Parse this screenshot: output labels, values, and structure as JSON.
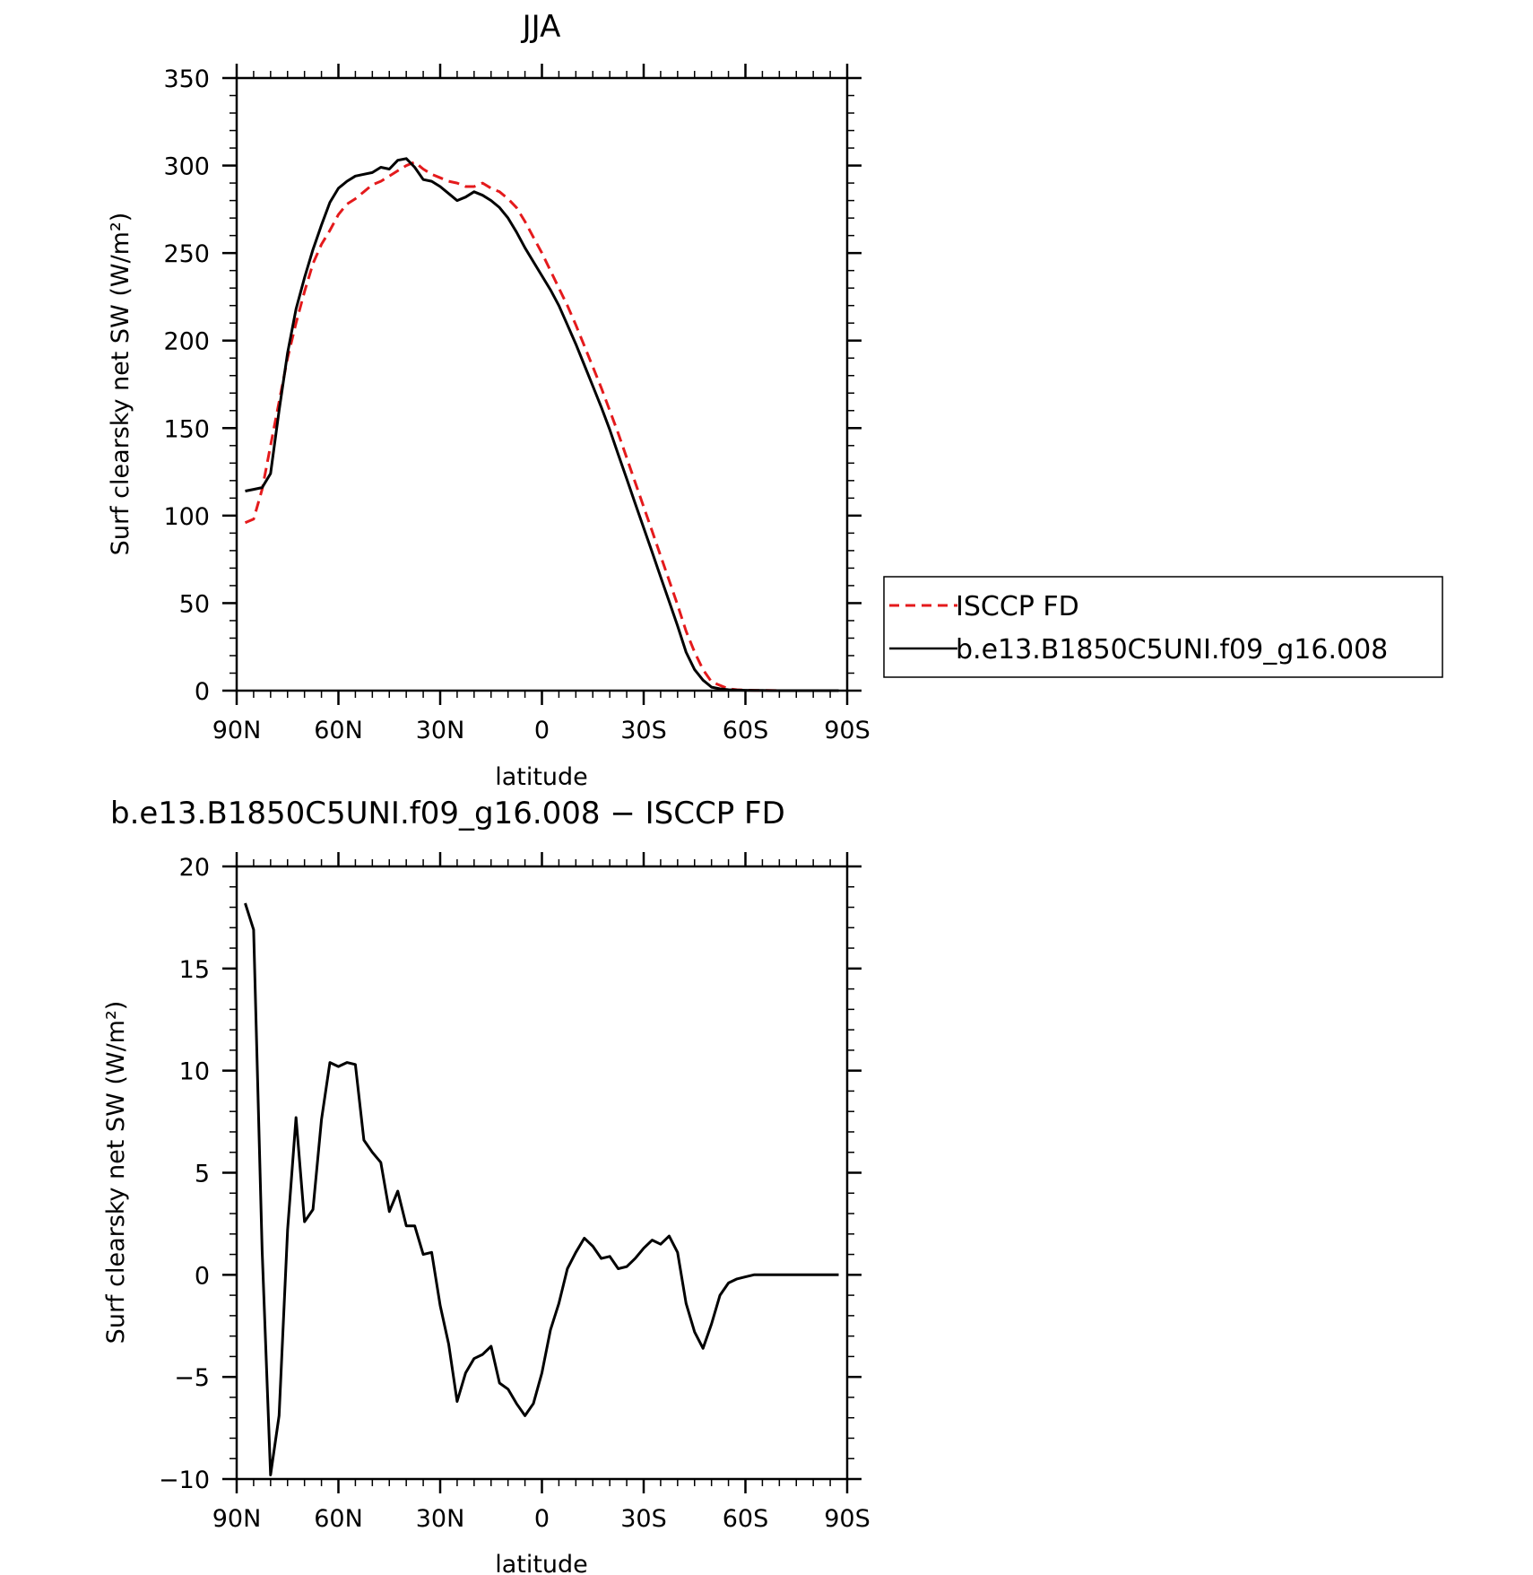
{
  "chart_data": [
    {
      "type": "line",
      "title": "JJA",
      "xlabel": "latitude",
      "ylabel": "Surf clearsky net SW (W/m²)",
      "xlim": [
        90,
        -90
      ],
      "ylim": [
        0,
        350
      ],
      "x_ticks": [
        90,
        60,
        30,
        0,
        -30,
        -60,
        -90
      ],
      "x_tick_labels": [
        "90N",
        "60N",
        "30N",
        "0",
        "30S",
        "60S",
        "90S"
      ],
      "y_ticks": [
        0,
        50,
        100,
        150,
        200,
        250,
        300,
        350
      ],
      "y_tick_labels": [
        "0",
        "50",
        "100",
        "150",
        "200",
        "250",
        "300",
        "350"
      ],
      "legend": {
        "position": "right",
        "entries": [
          "ISCCP FD",
          "b.e13.B1850C5UNI.f09_g16.008"
        ]
      },
      "series": [
        {
          "name": "ISCCP FD",
          "color": "#e41a1c",
          "dash": "dashed",
          "x": [
            87.5,
            85,
            82.5,
            80,
            77.5,
            75,
            72.5,
            70,
            67.5,
            65,
            62.5,
            60,
            57.5,
            55,
            52.5,
            50,
            47.5,
            45,
            42.5,
            40,
            37.5,
            35,
            32.5,
            30,
            27.5,
            25,
            22.5,
            20,
            17.5,
            15,
            12.5,
            10,
            7.5,
            5,
            2.5,
            0,
            -2.5,
            -5,
            -7.5,
            -10,
            -12.5,
            -15,
            -17.5,
            -20,
            -22.5,
            -25,
            -27.5,
            -30,
            -32.5,
            -35,
            -37.5,
            -40,
            -42.5,
            -45,
            -47.5,
            -50,
            -52.5,
            -55,
            -57.5,
            -60,
            -62.5,
            -65,
            -67.5,
            -70,
            -72.5,
            -75,
            -77.5,
            -80,
            -82.5,
            -85,
            -87.5
          ],
          "values": [
            96,
            98,
            115,
            140,
            165,
            190,
            210,
            228,
            244,
            255,
            263,
            272,
            278,
            281,
            285,
            289,
            291,
            294,
            297,
            300,
            302,
            298,
            295,
            293,
            291,
            290,
            288,
            288,
            290,
            287,
            285,
            281,
            276,
            268,
            259,
            250,
            240,
            230,
            220,
            209,
            197,
            185,
            173,
            160,
            147,
            133,
            119,
            105,
            91,
            77,
            63,
            49,
            34,
            22,
            12,
            5,
            3,
            1,
            0.5,
            0.3,
            0.2,
            0.1,
            0.1,
            0,
            0,
            0,
            0,
            0,
            0,
            0,
            0
          ]
        },
        {
          "name": "b.e13.B1850C5UNI.f09_g16.008",
          "color": "#000000",
          "dash": "solid",
          "x": [
            87.5,
            85,
            82.5,
            80,
            77.5,
            75,
            72.5,
            70,
            67.5,
            65,
            62.5,
            60,
            57.5,
            55,
            52.5,
            50,
            47.5,
            45,
            42.5,
            40,
            37.5,
            35,
            32.5,
            30,
            27.5,
            25,
            22.5,
            20,
            17.5,
            15,
            12.5,
            10,
            7.5,
            5,
            2.5,
            0,
            -2.5,
            -5,
            -7.5,
            -10,
            -12.5,
            -15,
            -17.5,
            -20,
            -22.5,
            -25,
            -27.5,
            -30,
            -32.5,
            -35,
            -37.5,
            -40,
            -42.5,
            -45,
            -47.5,
            -50,
            -52.5,
            -55,
            -57.5,
            -60,
            -62.5,
            -65,
            -67.5,
            -70,
            -72.5,
            -75,
            -77.5,
            -80,
            -82.5,
            -85,
            -87.5
          ],
          "values": [
            114,
            115,
            116,
            124,
            160,
            193,
            218,
            236,
            252,
            266,
            279,
            287,
            291,
            294,
            295,
            296,
            299,
            298,
            303,
            304,
            299,
            292,
            291,
            288,
            284,
            280,
            282,
            285,
            283,
            280,
            276,
            270,
            262,
            253,
            245,
            237,
            229,
            220,
            209,
            198,
            186,
            174,
            162,
            149,
            135,
            121,
            107,
            93,
            79,
            65,
            51,
            37,
            22,
            12,
            6,
            2,
            1,
            0.5,
            0.3,
            0.2,
            0.1,
            0.1,
            0,
            0,
            0,
            0,
            0,
            0,
            0,
            0,
            0
          ]
        }
      ]
    },
    {
      "type": "line",
      "title": "b.e13.B1850C5UNI.f09_g16.008 − ISCCP FD",
      "xlabel": "latitude",
      "ylabel": "Surf clearsky net SW (W/m²)",
      "xlim": [
        90,
        -90
      ],
      "ylim": [
        -10,
        20
      ],
      "x_ticks": [
        90,
        60,
        30,
        0,
        -30,
        -60,
        -90
      ],
      "x_tick_labels": [
        "90N",
        "60N",
        "30N",
        "0",
        "30S",
        "60S",
        "90S"
      ],
      "y_ticks": [
        -10,
        -5,
        0,
        5,
        10,
        15,
        20
      ],
      "y_tick_labels": [
        "−10",
        "−5",
        "0",
        "5",
        "10",
        "15",
        "20"
      ],
      "series": [
        {
          "color": "#000000",
          "dash": "solid",
          "x": [
            87.5,
            85,
            82.5,
            80,
            77.5,
            75,
            72.5,
            70,
            67.5,
            65,
            62.5,
            60,
            57.5,
            55,
            52.5,
            50,
            47.5,
            45,
            42.5,
            40,
            37.5,
            35,
            32.5,
            30,
            27.5,
            25,
            22.5,
            20,
            17.5,
            15,
            12.5,
            10,
            7.5,
            5,
            2.5,
            0,
            -2.5,
            -5,
            -7.5,
            -10,
            -12.5,
            -15,
            -17.5,
            -20,
            -22.5,
            -25,
            -27.5,
            -30,
            -32.5,
            -35,
            -37.5,
            -40,
            -42.5,
            -45,
            -47.5,
            -50,
            -52.5,
            -55,
            -57.5,
            -60,
            -62.5,
            -65,
            -67.5,
            -70,
            -72.5,
            -75,
            -77.5,
            -80,
            -82.5,
            -85,
            -87.5
          ],
          "values": [
            18.2,
            16.9,
            1.2,
            -9.8,
            -6.9,
            2.2,
            7.7,
            2.6,
            3.2,
            7.6,
            10.4,
            10.2,
            10.4,
            10.3,
            6.6,
            6.0,
            5.5,
            3.1,
            4.1,
            2.4,
            2.4,
            1.0,
            1.1,
            -1.5,
            -3.4,
            -6.2,
            -4.8,
            -4.1,
            -3.9,
            -3.5,
            -5.3,
            -5.6,
            -6.3,
            -6.9,
            -6.3,
            -4.8,
            -2.7,
            -1.4,
            0.3,
            1.1,
            1.8,
            1.4,
            0.8,
            0.9,
            0.3,
            0.4,
            0.8,
            1.3,
            1.7,
            1.5,
            1.9,
            1.1,
            -1.4,
            -2.8,
            -3.6,
            -2.4,
            -1.0,
            -0.4,
            -0.2,
            -0.1,
            0,
            0,
            0,
            0,
            0,
            0,
            0,
            0,
            0,
            0,
            0
          ]
        }
      ]
    }
  ]
}
